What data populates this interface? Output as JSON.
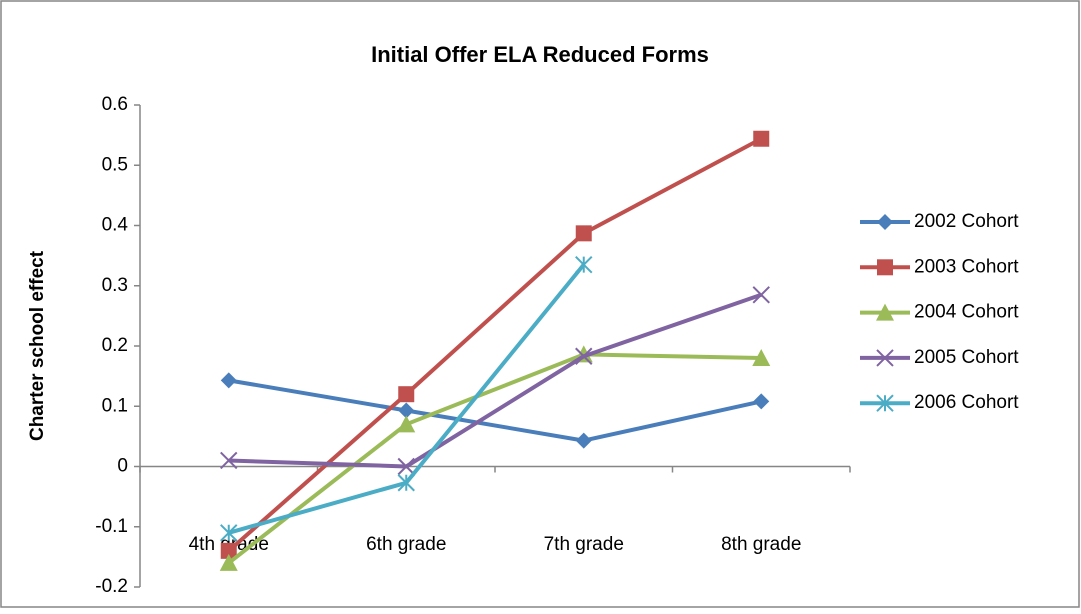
{
  "chart_data": {
    "type": "line",
    "title": "Initial Offer ELA Reduced Forms",
    "y_label": "Charter school effect",
    "categories": [
      "4th grade",
      "6th grade",
      "7th grade",
      "8th grade"
    ],
    "series": [
      {
        "name": "2002 Cohort",
        "color": "#4a7ebb",
        "marker": "diamond",
        "values": [
          0.143,
          0.093,
          0.043,
          0.108
        ]
      },
      {
        "name": "2003 Cohort",
        "color": "#c0504d",
        "marker": "square",
        "values": [
          -0.14,
          0.12,
          0.387,
          0.544
        ]
      },
      {
        "name": "2004 Cohort",
        "color": "#9bbb59",
        "marker": "triangle",
        "values": [
          -0.16,
          0.07,
          0.186,
          0.18
        ]
      },
      {
        "name": "2005 Cohort",
        "color": "#8064a2",
        "marker": "x",
        "values": [
          0.01,
          0.0,
          0.183,
          0.285
        ]
      },
      {
        "name": "2006 Cohort",
        "color": "#4bacc6",
        "marker": "star",
        "values": [
          -0.11,
          -0.027,
          0.335,
          null
        ]
      }
    ],
    "ylim": [
      -0.2,
      0.6
    ],
    "yticks": [
      -0.2,
      -0.1,
      0,
      0.1,
      0.2,
      0.3,
      0.4,
      0.5,
      0.6
    ],
    "legend": "right"
  }
}
